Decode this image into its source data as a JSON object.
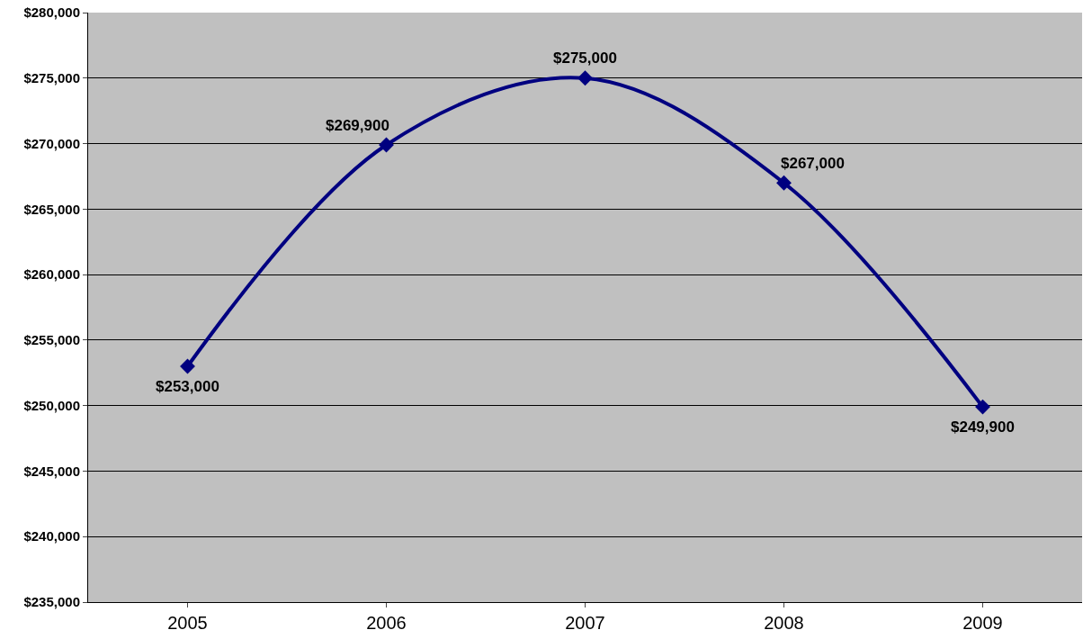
{
  "chart_data": {
    "type": "line",
    "categories": [
      "2005",
      "2006",
      "2007",
      "2008",
      "2009"
    ],
    "series": [
      {
        "color": "#000080",
        "values": [
          253000,
          269900,
          275000,
          267000,
          249900
        ],
        "value_labels": [
          "$253,000",
          "$269,900",
          "$275,000",
          "$267,000",
          "$249,900"
        ]
      }
    ],
    "ylim": [
      235000,
      280000
    ],
    "yticks": [
      {
        "value": 235000,
        "label": "$235,000"
      },
      {
        "value": 240000,
        "label": "$240,000"
      },
      {
        "value": 245000,
        "label": "$245,000"
      },
      {
        "value": 250000,
        "label": "$250,000"
      },
      {
        "value": 255000,
        "label": "$255,000"
      },
      {
        "value": 260000,
        "label": "$260,000"
      },
      {
        "value": 265000,
        "label": "$265,000"
      },
      {
        "value": 270000,
        "label": "$270,000"
      },
      {
        "value": 275000,
        "label": "$275,000"
      },
      {
        "value": 280000,
        "label": "$280,000"
      }
    ],
    "grid": "y",
    "marker": "diamond",
    "line_style": "solid"
  }
}
